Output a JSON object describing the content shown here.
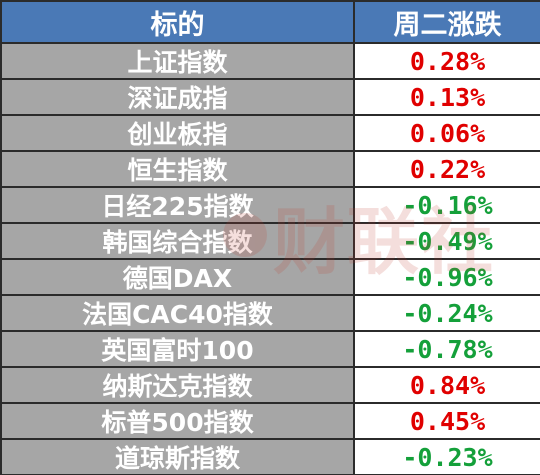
{
  "table": {
    "header": {
      "name": "标的",
      "change": "周二涨跌"
    },
    "rows": [
      {
        "name": "上证指数",
        "change": "0.28%",
        "direction": "up"
      },
      {
        "name": "深证成指",
        "change": "0.13%",
        "direction": "up"
      },
      {
        "name": "创业板指",
        "change": "0.06%",
        "direction": "up"
      },
      {
        "name": "恒生指数",
        "change": "0.22%",
        "direction": "up"
      },
      {
        "name": "日经225指数",
        "change": "-0.16%",
        "direction": "down"
      },
      {
        "name": "韩国综合指数",
        "change": "-0.49%",
        "direction": "down"
      },
      {
        "name": "德国DAX",
        "change": "-0.96%",
        "direction": "down"
      },
      {
        "name": "法国CAC40指数",
        "change": "-0.24%",
        "direction": "down"
      },
      {
        "name": "英国富时100",
        "change": "-0.78%",
        "direction": "down"
      },
      {
        "name": "纳斯达克指数",
        "change": "0.84%",
        "direction": "up"
      },
      {
        "name": "标普500指数",
        "change": "0.45%",
        "direction": "up"
      },
      {
        "name": "道琼斯指数",
        "change": "-0.23%",
        "direction": "down"
      }
    ]
  },
  "watermark": {
    "text": "财联社"
  },
  "colors": {
    "header_background": "#4a79b6",
    "name_cell_background": "#a6a6a6",
    "positive_color": "#e00000",
    "negative_color": "#14a03a",
    "border_color": "#2b2b2b"
  }
}
